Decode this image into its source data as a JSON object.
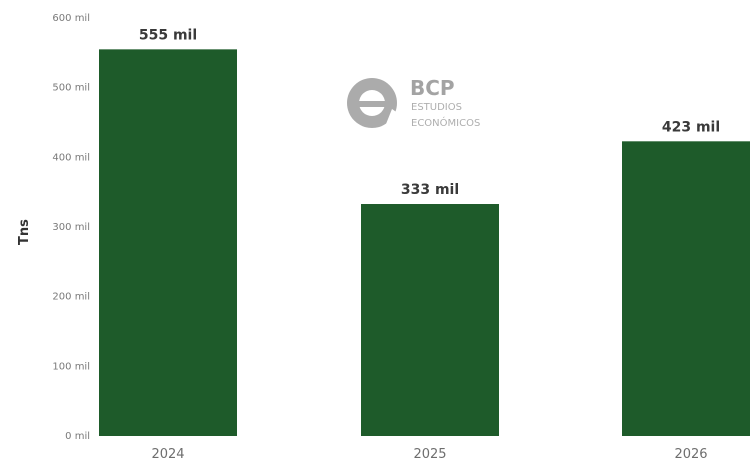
{
  "chart_data": {
    "type": "bar",
    "categories": [
      "2024",
      "2025",
      "2026"
    ],
    "values": [
      555000,
      333000,
      423000
    ],
    "data_labels": [
      "555 mil",
      "333 mil",
      "423 mil"
    ],
    "title": "",
    "xlabel": "",
    "ylabel": "Tns",
    "ylim": [
      0,
      600000
    ],
    "yticks": [
      0,
      100000,
      200000,
      300000,
      400000,
      500000,
      600000
    ],
    "ytick_labels": [
      "0 mil",
      "100 mil",
      "200 mil",
      "300 mil",
      "400 mil",
      "500 mil",
      "600 mil"
    ],
    "grid": false,
    "legend": "none",
    "bar_color": "#1e5b2a"
  },
  "watermark": {
    "brand": "BCP",
    "line1": "ESTUDIOS",
    "line2": "ECONÓMICOS",
    "color": "#9a9a9a"
  }
}
